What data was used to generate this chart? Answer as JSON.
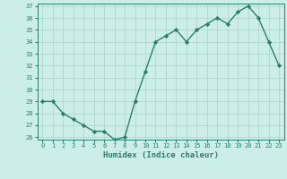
{
  "x": [
    0,
    1,
    2,
    3,
    4,
    5,
    6,
    7,
    8,
    9,
    10,
    11,
    12,
    13,
    14,
    15,
    16,
    17,
    18,
    19,
    20,
    21,
    22,
    23
  ],
  "y": [
    29,
    29,
    28,
    27.5,
    27,
    26.5,
    26.5,
    25.8,
    26,
    29,
    31.5,
    34,
    34.5,
    35,
    34,
    35,
    35.5,
    36,
    35.5,
    36.5,
    37,
    36,
    34,
    32
  ],
  "line_color": "#2d7d6e",
  "marker": "D",
  "marker_size": 2.2,
  "bg_color": "#cceee8",
  "grid_color": "#b0d8d0",
  "xlabel": "Humidex (Indice chaleur)",
  "ylim": [
    26,
    37
  ],
  "xlim": [
    -0.5,
    23.5
  ],
  "yticks": [
    26,
    27,
    28,
    29,
    30,
    31,
    32,
    33,
    34,
    35,
    36,
    37
  ],
  "xticks": [
    0,
    1,
    2,
    3,
    4,
    5,
    6,
    7,
    8,
    9,
    10,
    11,
    12,
    13,
    14,
    15,
    16,
    17,
    18,
    19,
    20,
    21,
    22,
    23
  ],
  "tick_color": "#2d7d6e",
  "label_color": "#2d7d6e",
  "line_width": 1.0,
  "tick_fontsize": 5.0,
  "xlabel_fontsize": 6.5
}
